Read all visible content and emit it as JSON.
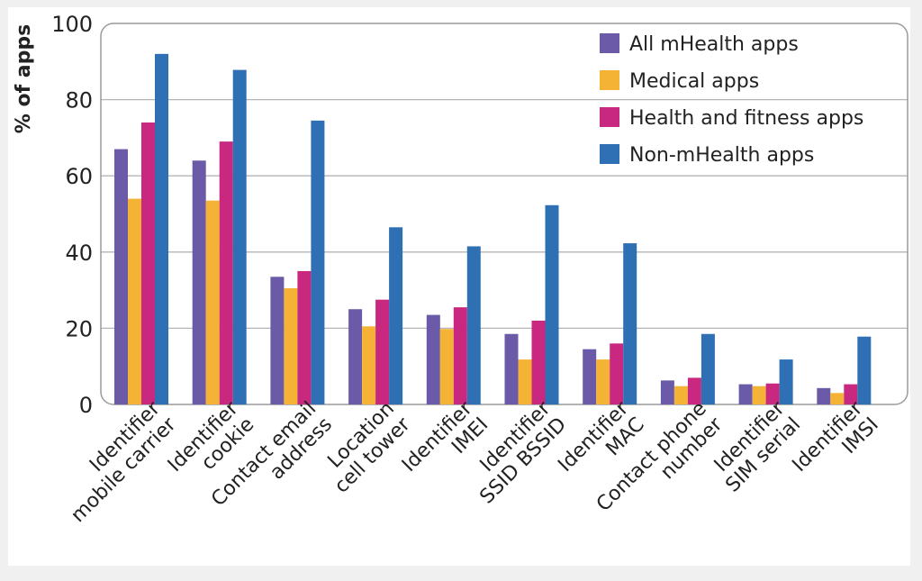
{
  "chart_data": {
    "type": "bar",
    "ylabel": "% of apps",
    "ylim": [
      0,
      100
    ],
    "yticks": [
      "0",
      "20",
      "40",
      "60",
      "80",
      "100"
    ],
    "grid": true,
    "legend_position": "top-right",
    "categories": [
      [
        "Identifier",
        "mobile carrier"
      ],
      [
        "Identifier",
        "cookie"
      ],
      [
        "Contact email",
        "address"
      ],
      [
        "Location",
        "cell tower"
      ],
      [
        "Identifier",
        "IMEI"
      ],
      [
        "Identifier",
        "SSID BSSID"
      ],
      [
        "Identifier",
        "MAC"
      ],
      [
        "Contact phone",
        "number"
      ],
      [
        "Identifier",
        "SIM serial"
      ],
      [
        "Identifier",
        "IMSI"
      ]
    ],
    "series": [
      {
        "name": "All mHealth apps",
        "color": "#6b5aa8",
        "values": [
          67,
          64,
          33.5,
          25,
          23.5,
          18.5,
          14.5,
          6.3,
          5.3,
          4.3
        ]
      },
      {
        "name": "Medical apps",
        "color": "#f5b335",
        "values": [
          54,
          53.5,
          30.5,
          20.5,
          19.8,
          11.8,
          11.8,
          4.8,
          4.8,
          3
        ]
      },
      {
        "name": "Health and fitness apps",
        "color": "#c8287f",
        "values": [
          74,
          69,
          35,
          27.5,
          25.5,
          22,
          16,
          7,
          5.5,
          5.3
        ]
      },
      {
        "name": "Non-mHealth apps",
        "color": "#2f6fb3",
        "values": [
          92,
          87.8,
          74.5,
          46.5,
          41.5,
          52.3,
          42.3,
          18.5,
          11.8,
          17.8
        ]
      }
    ]
  }
}
